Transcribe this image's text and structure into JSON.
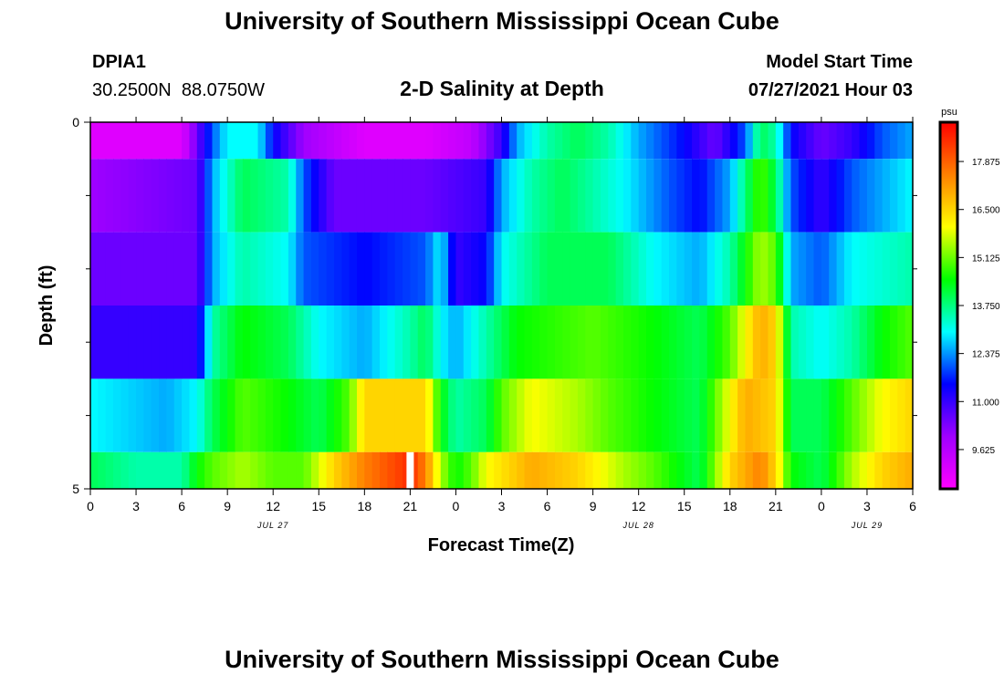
{
  "page": {
    "title": "University of Southern Mississippi Ocean Cube",
    "footer_title": "University of Southern Mississippi Ocean Cube",
    "station_id": "DPIA1",
    "coordinates": "30.2500N  88.0750W",
    "chart_title": "2-D Salinity at Depth",
    "model_start_label": "Model Start Time",
    "model_start_value": "07/27/2021 Hour 03"
  },
  "chart_data": {
    "type": "heatmap",
    "title": "2-D Salinity at Depth",
    "xlabel": "Forecast Time(Z)",
    "ylabel": "Depth (ft)",
    "x_tick_labels": [
      "0",
      "3",
      "6",
      "9",
      "12",
      "15",
      "18",
      "21",
      "0",
      "3",
      "6",
      "9",
      "12",
      "15",
      "18",
      "21",
      "0",
      "3",
      "6"
    ],
    "x_hours": [
      0,
      54
    ],
    "date_labels": [
      {
        "text": "JUL 27",
        "hour": 12
      },
      {
        "text": "JUL 28",
        "hour": 36
      },
      {
        "text": "JUL 29",
        "hour": 51
      }
    ],
    "y_tick_labels": [
      "0",
      "5"
    ],
    "ylim": [
      0,
      5
    ],
    "y_minor_ticks": [
      1,
      2,
      3,
      4
    ],
    "colorbar": {
      "unit": "psu",
      "min": 8.5,
      "max": 19.0,
      "ticks": [
        "9.625",
        "11.000",
        "12.375",
        "13.750",
        "15.125",
        "16.500",
        "17.875"
      ],
      "colors": [
        "#ff00ff",
        "#a000ff",
        "#0000ff",
        "#00ffff",
        "#00ff00",
        "#ffff00",
        "#ff8000",
        "#ff0000"
      ]
    },
    "layer_depths": [
      0.5,
      1.5,
      2.5,
      3.5,
      4.5,
      5.0
    ],
    "layer_bounds": [
      [
        0,
        0.5
      ],
      [
        0.5,
        1.5
      ],
      [
        1.5,
        2.5
      ],
      [
        2.5,
        3.5
      ],
      [
        3.5,
        4.5
      ],
      [
        4.5,
        5.0
      ]
    ],
    "series": [
      {
        "name": "depth 0-0.5 ft",
        "points": [
          [
            0,
            9.0
          ],
          [
            6,
            9.0
          ],
          [
            7,
            10.5
          ],
          [
            8,
            12.0
          ],
          [
            9,
            13.0
          ],
          [
            11,
            13.0
          ],
          [
            12,
            11.5
          ],
          [
            14,
            10.0
          ],
          [
            18,
            9.0
          ],
          [
            22,
            9.0
          ],
          [
            25,
            9.5
          ],
          [
            27,
            11.0
          ],
          [
            28,
            12.5
          ],
          [
            30,
            13.5
          ],
          [
            32,
            14.0
          ],
          [
            34,
            13.5
          ],
          [
            36,
            12.5
          ],
          [
            39,
            11.5
          ],
          [
            41,
            10.5
          ],
          [
            43,
            12.0
          ],
          [
            44,
            14.0
          ],
          [
            45,
            13.5
          ],
          [
            46,
            11.5
          ],
          [
            48,
            10.5
          ],
          [
            50,
            11.0
          ],
          [
            52,
            12.0
          ],
          [
            54,
            12.5
          ]
        ]
      },
      {
        "name": "depth 0.5-1.5 ft",
        "points": [
          [
            0,
            10.0
          ],
          [
            7,
            10.5
          ],
          [
            8,
            12.5
          ],
          [
            10,
            14.0
          ],
          [
            13,
            13.5
          ],
          [
            14,
            12.0
          ],
          [
            16,
            10.5
          ],
          [
            22,
            10.5
          ],
          [
            26,
            11.0
          ],
          [
            27,
            12.5
          ],
          [
            29,
            13.5
          ],
          [
            31,
            14.0
          ],
          [
            35,
            13.0
          ],
          [
            38,
            12.0
          ],
          [
            40,
            11.5
          ],
          [
            42,
            12.5
          ],
          [
            44,
            15.0
          ],
          [
            45,
            14.0
          ],
          [
            46,
            12.0
          ],
          [
            48,
            11.0
          ],
          [
            50,
            12.0
          ],
          [
            52,
            12.5
          ],
          [
            54,
            13.0
          ]
        ]
      },
      {
        "name": "depth 1.5-2.5 ft",
        "points": [
          [
            0,
            10.5
          ],
          [
            7,
            10.5
          ],
          [
            8,
            12.5
          ],
          [
            10,
            13.5
          ],
          [
            13,
            13.0
          ],
          [
            14,
            12.0
          ],
          [
            18,
            11.5
          ],
          [
            22,
            12.0
          ],
          [
            23,
            13.0
          ],
          [
            24,
            11.0
          ],
          [
            26,
            11.5
          ],
          [
            27,
            13.0
          ],
          [
            30,
            14.0
          ],
          [
            34,
            14.0
          ],
          [
            37,
            13.0
          ],
          [
            40,
            12.5
          ],
          [
            42,
            13.5
          ],
          [
            44,
            15.5
          ],
          [
            45,
            15.0
          ],
          [
            46,
            12.5
          ],
          [
            48,
            12.0
          ],
          [
            50,
            13.0
          ],
          [
            54,
            13.5
          ]
        ]
      },
      {
        "name": "depth 2.5-3.5 ft",
        "points": [
          [
            0,
            11.0
          ],
          [
            7,
            11.0
          ],
          [
            8,
            13.5
          ],
          [
            10,
            14.5
          ],
          [
            13,
            14.0
          ],
          [
            15,
            13.0
          ],
          [
            18,
            12.5
          ],
          [
            21,
            13.5
          ],
          [
            22,
            14.0
          ],
          [
            23,
            13.0
          ],
          [
            24,
            12.5
          ],
          [
            26,
            13.5
          ],
          [
            28,
            14.5
          ],
          [
            33,
            15.0
          ],
          [
            37,
            14.5
          ],
          [
            40,
            14.0
          ],
          [
            42,
            15.0
          ],
          [
            44,
            17.0
          ],
          [
            45,
            16.5
          ],
          [
            46,
            13.5
          ],
          [
            48,
            13.0
          ],
          [
            50,
            13.5
          ],
          [
            52,
            14.5
          ],
          [
            54,
            15.0
          ]
        ]
      },
      {
        "name": "depth 3.5-4.5 ft",
        "points": [
          [
            0,
            13.0
          ],
          [
            5,
            12.5
          ],
          [
            7,
            13.0
          ],
          [
            8,
            14.0
          ],
          [
            10,
            15.0
          ],
          [
            13,
            14.5
          ],
          [
            15,
            14.0
          ],
          [
            17,
            15.0
          ],
          [
            18,
            16.5
          ],
          [
            22,
            16.5
          ],
          [
            23,
            14.5
          ],
          [
            24,
            13.5
          ],
          [
            26,
            14.0
          ],
          [
            27,
            15.0
          ],
          [
            29,
            16.0
          ],
          [
            32,
            15.5
          ],
          [
            34,
            15.0
          ],
          [
            37,
            14.5
          ],
          [
            40,
            14.0
          ],
          [
            43,
            17.0
          ],
          [
            45,
            16.5
          ],
          [
            46,
            14.0
          ],
          [
            48,
            14.0
          ],
          [
            50,
            15.0
          ],
          [
            52,
            16.0
          ],
          [
            54,
            16.5
          ]
        ]
      },
      {
        "name": "depth 4.5-5 ft",
        "points": [
          [
            0,
            14.0
          ],
          [
            3,
            13.5
          ],
          [
            6,
            13.5
          ],
          [
            7,
            14.5
          ],
          [
            8,
            15.0
          ],
          [
            10,
            15.5
          ],
          [
            12,
            15.0
          ],
          [
            14,
            15.0
          ],
          [
            16,
            16.5
          ],
          [
            18,
            17.5
          ],
          [
            21,
            18.5
          ],
          [
            22,
            17.5
          ],
          [
            23,
            15.5
          ],
          [
            24,
            14.5
          ],
          [
            25,
            15.0
          ],
          [
            26,
            16.0
          ],
          [
            29,
            17.0
          ],
          [
            32,
            16.5
          ],
          [
            35,
            15.5
          ],
          [
            37,
            15.0
          ],
          [
            40,
            14.0
          ],
          [
            42,
            16.5
          ],
          [
            44,
            17.5
          ],
          [
            45,
            16.5
          ],
          [
            46,
            14.5
          ],
          [
            48,
            14.0
          ],
          [
            50,
            15.5
          ],
          [
            52,
            16.5
          ],
          [
            54,
            17.0
          ]
        ]
      }
    ],
    "missing_data": [
      {
        "hour": 21.0,
        "layer": 5
      }
    ]
  }
}
